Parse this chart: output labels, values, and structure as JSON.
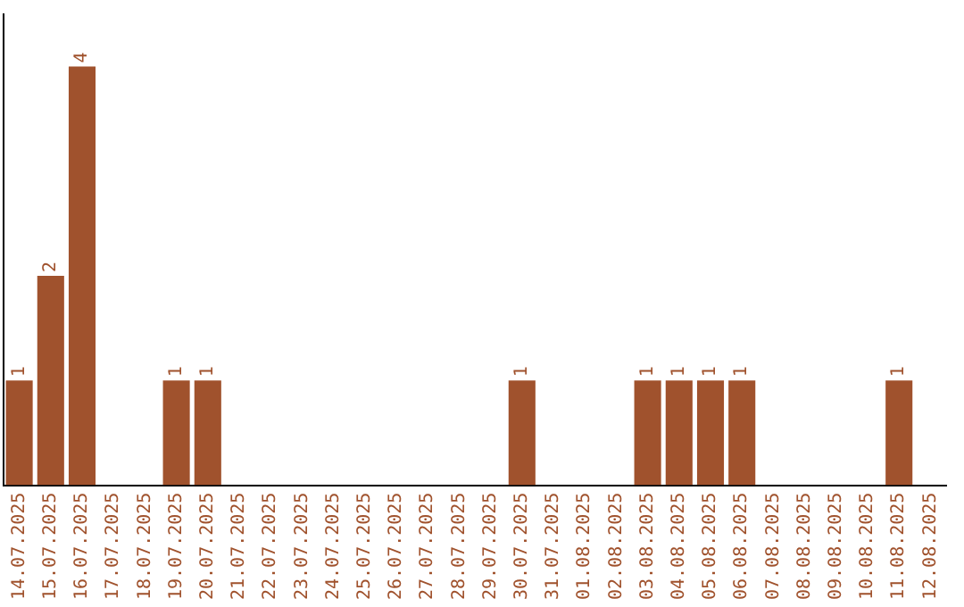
{
  "chart_data": {
    "type": "bar",
    "categories": [
      "14.07.2025",
      "15.07.2025",
      "16.07.2025",
      "17.07.2025",
      "18.07.2025",
      "19.07.2025",
      "20.07.2025",
      "21.07.2025",
      "22.07.2025",
      "23.07.2025",
      "24.07.2025",
      "25.07.2025",
      "26.07.2025",
      "27.07.2025",
      "28.07.2025",
      "29.07.2025",
      "30.07.2025",
      "31.07.2025",
      "01.08.2025",
      "02.08.2025",
      "03.08.2025",
      "04.08.2025",
      "05.08.2025",
      "06.08.2025",
      "07.08.2025",
      "08.08.2025",
      "09.08.2025",
      "10.08.2025",
      "11.08.2025",
      "12.08.2025"
    ],
    "values": [
      1,
      2,
      4,
      0,
      0,
      1,
      1,
      0,
      0,
      0,
      0,
      0,
      0,
      0,
      0,
      0,
      1,
      0,
      0,
      0,
      1,
      1,
      1,
      1,
      0,
      0,
      0,
      0,
      1,
      0
    ],
    "value_labels": [
      "1",
      "2",
      "4",
      null,
      null,
      "1",
      "1",
      null,
      null,
      null,
      null,
      null,
      null,
      null,
      null,
      null,
      "1",
      null,
      null,
      null,
      "1",
      "1",
      "1",
      "1",
      null,
      null,
      null,
      null,
      "1",
      null
    ],
    "color": "#a0522d",
    "grid": false,
    "legend": false,
    "tick_labels": "x"
  }
}
